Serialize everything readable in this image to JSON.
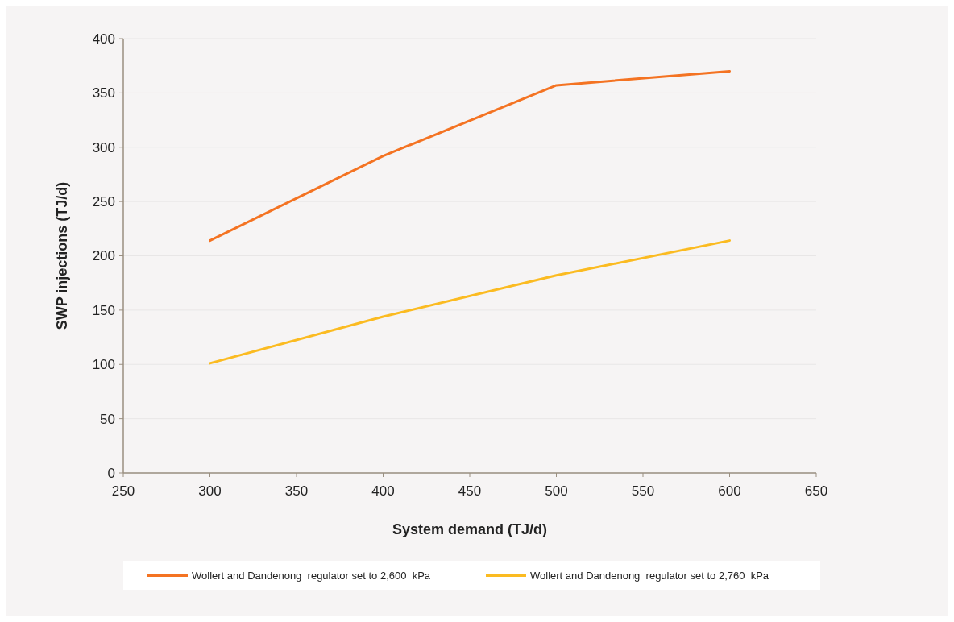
{
  "chart_data": {
    "type": "line",
    "xlabel": "System demand (TJ/d)",
    "ylabel": "SWP injections (TJ/d)",
    "x": [
      300,
      400,
      500,
      600
    ],
    "series": [
      {
        "name": "Wollert and Dandenong  regulator set to 2,600  kPa",
        "color": "#f47322",
        "values": [
          214,
          292,
          357,
          370
        ]
      },
      {
        "name": "Wollert and Dandenong  regulator set to 2,760  kPa",
        "color": "#fbbb21",
        "values": [
          101,
          144,
          182,
          214
        ]
      }
    ],
    "xlim": [
      250,
      650
    ],
    "xticks": [
      250,
      300,
      350,
      400,
      450,
      500,
      550,
      600,
      650
    ],
    "ylim": [
      0,
      400
    ],
    "yticks": [
      0,
      50,
      100,
      150,
      200,
      250,
      300,
      350,
      400
    ],
    "grid": "y",
    "legend": "bottom",
    "marker": "none",
    "line_style": "solid"
  }
}
